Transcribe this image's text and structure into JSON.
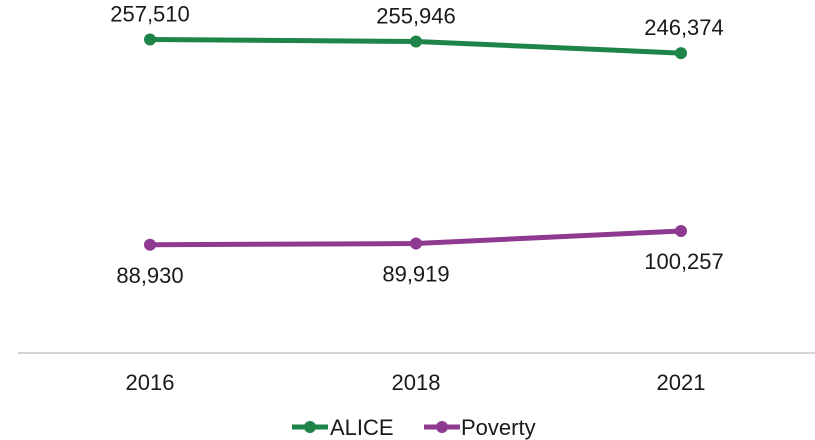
{
  "chart_data": {
    "type": "line",
    "title": "",
    "xlabel": "",
    "ylabel": "",
    "categories": [
      "2016",
      "2018",
      "2021"
    ],
    "series": [
      {
        "name": "ALICE",
        "values": [
          257510,
          255946,
          246374
        ],
        "labels": [
          "257,510",
          "255,946",
          "246,374"
        ],
        "color": "#1e8449"
      },
      {
        "name": "Poverty",
        "values": [
          88930,
          89919,
          100257
        ],
        "labels": [
          "88,930",
          "89,919",
          "100,257"
        ],
        "color": "#8e3a91"
      }
    ],
    "ylim": [
      0,
      290000
    ],
    "grid": false,
    "y_axis_visible": false,
    "legend": "bottom-center",
    "axis_color": "#c8c8c8"
  }
}
